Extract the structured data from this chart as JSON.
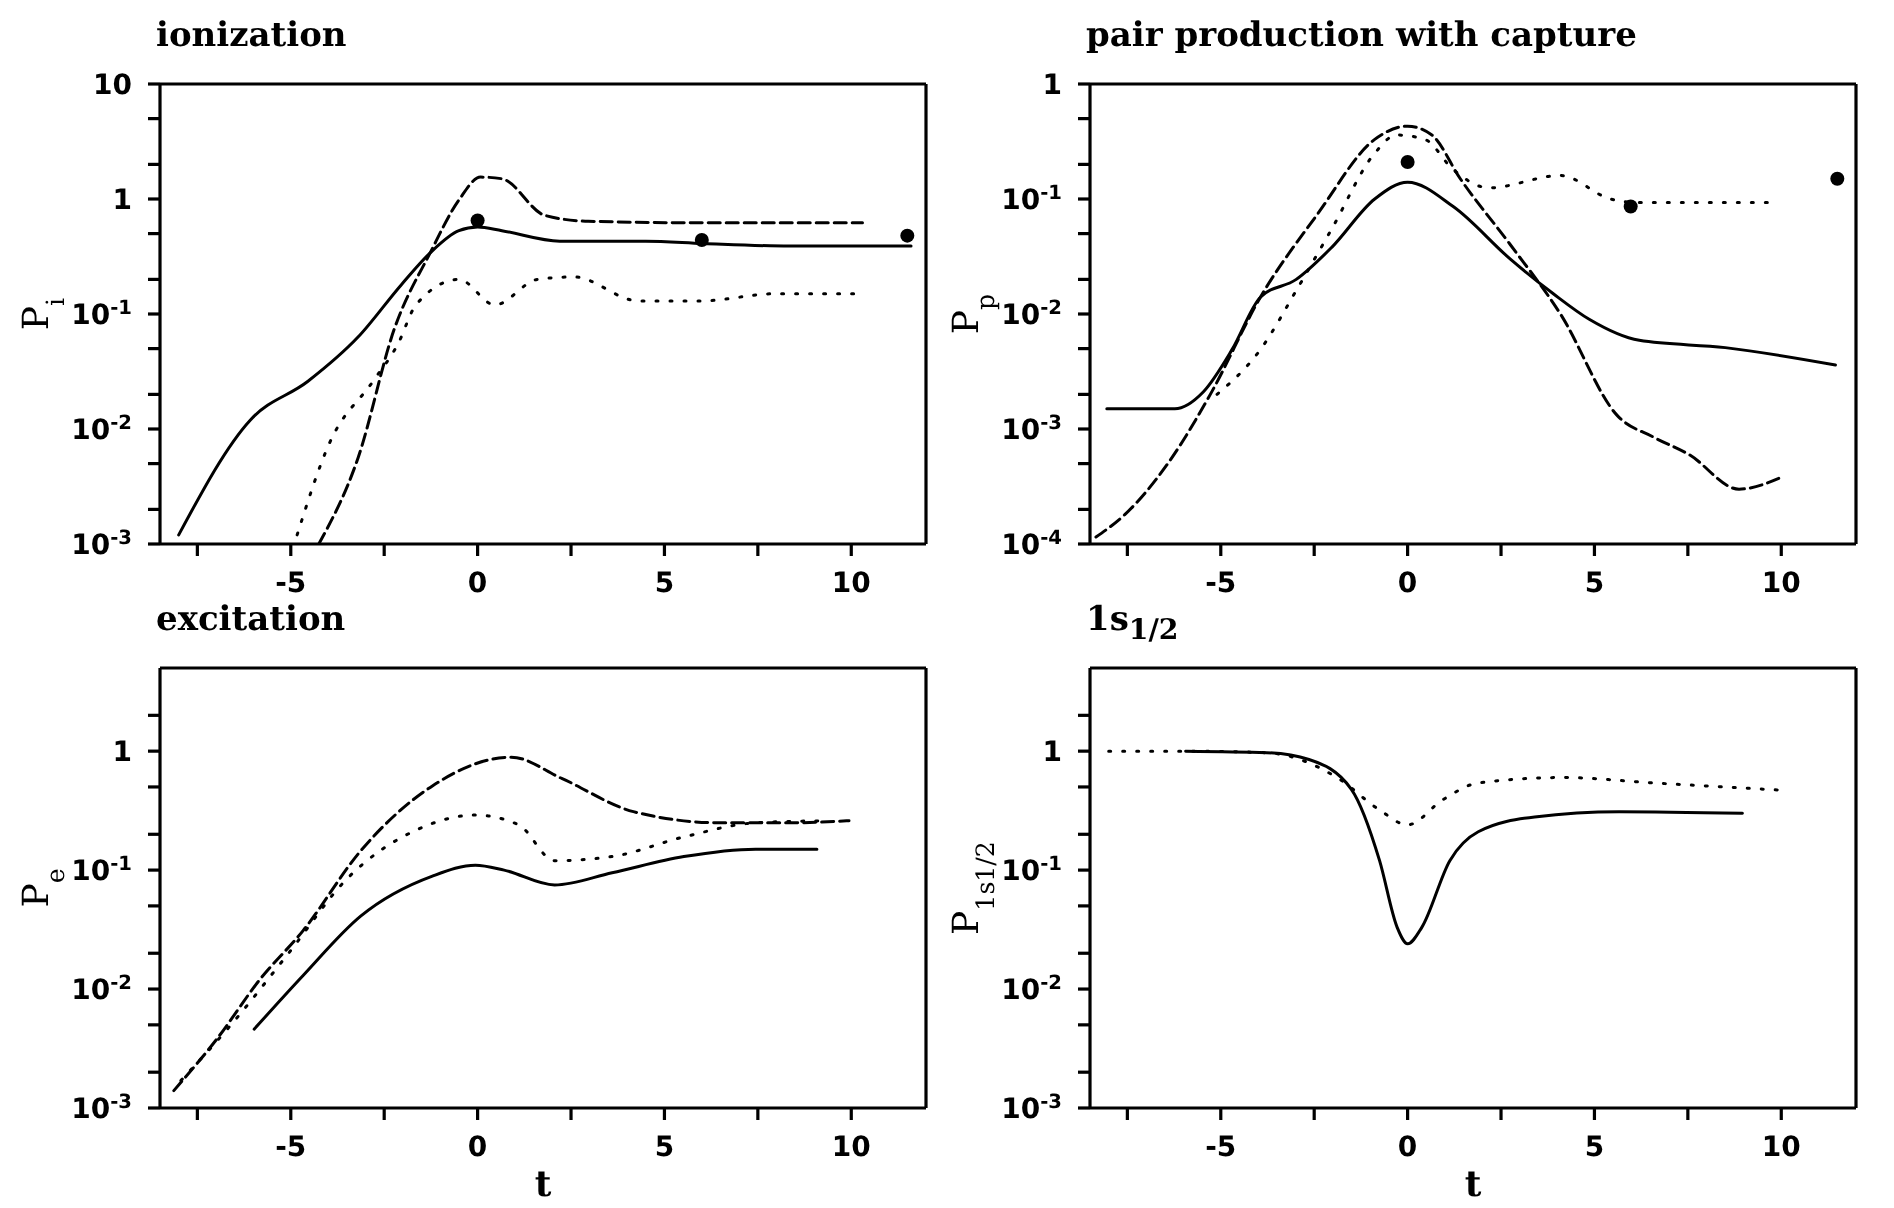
{
  "chart_data": [
    {
      "type": "line",
      "title": "ionization",
      "ylabel": "P$_{i}$",
      "log": true,
      "xlim": [
        -8.5,
        12
      ],
      "xticks": [
        {
          "value": -7.5,
          "label": null
        },
        -5,
        {
          "value": -2.5,
          "label": null
        },
        0,
        {
          "value": 2.5,
          "label": null
        },
        5,
        {
          "value": 7.5,
          "label": null
        },
        10
      ],
      "ylim": [
        0.001,
        10
      ],
      "yticks": [
        {
          "value": 0.001,
          "label": "10$^{-3}$"
        },
        {
          "value": 0.002,
          "label": null
        },
        {
          "value": 0.005,
          "label": null
        },
        {
          "value": 0.01,
          "label": "10$^{-2}$"
        },
        {
          "value": 0.02,
          "label": null
        },
        {
          "value": 0.05,
          "label": null
        },
        {
          "value": 0.1,
          "label": "10$^{-1}$"
        },
        {
          "value": 0.2,
          "label": null
        },
        {
          "value": 0.5,
          "label": null
        },
        {
          "value": 1,
          "label": "1"
        },
        {
          "value": 2,
          "label": null
        },
        {
          "value": 5,
          "label": null
        },
        {
          "value": 10,
          "label": "10"
        }
      ],
      "series": [
        {
          "type": "line",
          "color": "#000000",
          "line_style": "solid",
          "x": [
            -8.0,
            -6.08,
            -4.54,
            -3.2,
            -2.04,
            -1.27,
            -0.5,
            0,
            0.65,
            2.2,
            4.5,
            6.04,
            8.35,
            11.6
          ],
          "values": [
            0.0012,
            0.012,
            0.026,
            0.063,
            0.18,
            0.34,
            0.53,
            0.57,
            0.53,
            0.43,
            0.43,
            0.41,
            0.39,
            0.39
          ]
        },
        {
          "type": "line",
          "color": "#000000",
          "line_style": "dashed",
          "x": [
            -4.25,
            -3.2,
            -2.23,
            -1.27,
            -0.5,
            0.08,
            0.65,
            1.8,
            2.96,
            6.4,
            10.3
          ],
          "values": [
            0.001,
            0.0056,
            0.074,
            0.34,
            0.98,
            1.55,
            1.5,
            0.72,
            0.64,
            0.62,
            0.62
          ]
        },
        {
          "type": "line",
          "color": "#000000",
          "line_style": "dotted",
          "x": [
            -4.83,
            -3.96,
            -2.8,
            -2.13,
            -1.65,
            -0.5,
            0.46,
            1.6,
            2.58,
            4.3,
            6.0,
            7.96,
            10.1
          ],
          "values": [
            0.0012,
            0.0076,
            0.026,
            0.055,
            0.12,
            0.2,
            0.12,
            0.2,
            0.21,
            0.13,
            0.13,
            0.15,
            0.15
          ]
        },
        {
          "type": "scatter",
          "color": "#000000",
          "marker": "circle",
          "x": [
            0,
            6,
            11.5
          ],
          "values": [
            0.65,
            0.44,
            0.48
          ]
        }
      ]
    },
    {
      "type": "line",
      "title": "pair production with capture",
      "ylabel": "P$_{p}$",
      "log": true,
      "xlim": [
        -8.5,
        12
      ],
      "xticks": [
        {
          "value": -7.5,
          "label": null
        },
        -5,
        {
          "value": -2.5,
          "label": null
        },
        0,
        {
          "value": 2.5,
          "label": null
        },
        5,
        {
          "value": 7.5,
          "label": null
        },
        10
      ],
      "ylim": [
        0.0001,
        1
      ],
      "yticks": [
        {
          "value": 0.0001,
          "label": "10$^{-4}$"
        },
        {
          "value": 0.0002,
          "label": null
        },
        {
          "value": 0.0005,
          "label": null
        },
        {
          "value": 0.001,
          "label": "10$^{-3}$"
        },
        {
          "value": 0.002,
          "label": null
        },
        {
          "value": 0.005,
          "label": null
        },
        {
          "value": 0.01,
          "label": "10$^{-2}$"
        },
        {
          "value": 0.02,
          "label": null
        },
        {
          "value": 0.05,
          "label": null
        },
        {
          "value": 0.1,
          "label": "10$^{-1}$"
        },
        {
          "value": 0.2,
          "label": null
        },
        {
          "value": 0.5,
          "label": null
        },
        {
          "value": 1,
          "label": "1"
        }
      ],
      "series": [
        {
          "type": "line",
          "color": "#000000",
          "line_style": "solid",
          "x": [
            -8.05,
            -6.23,
            -5.47,
            -4.7,
            -3.94,
            -2.98,
            -2.03,
            -0.88,
            0,
            1.22,
            2.75,
            3.9,
            4.86,
            6.2,
            8.5,
            11.45
          ],
          "values": [
            0.0015,
            0.0015,
            0.0021,
            0.0049,
            0.014,
            0.02,
            0.038,
            0.1,
            0.14,
            0.086,
            0.03,
            0.015,
            0.009,
            0.0059,
            0.0051,
            0.0036
          ]
        },
        {
          "type": "line",
          "color": "#000000",
          "line_style": "dashed",
          "x": [
            -8.34,
            -7.57,
            -6.4,
            -5.28,
            -3.94,
            -2.41,
            -0.88,
            0,
            0.65,
            1.41,
            2.75,
            4.09,
            5.62,
            6.58,
            7.53,
            8.87,
            10.0
          ],
          "values": [
            0.000115,
            0.00018,
            0.00051,
            0.002,
            0.014,
            0.074,
            0.33,
            0.43,
            0.36,
            0.15,
            0.04,
            0.01,
            0.0013,
            0.00085,
            0.0006,
            0.0003,
            0.00038
          ]
        },
        {
          "type": "line",
          "color": "#000000",
          "line_style": "dotted",
          "x": [
            -5.1,
            -3.94,
            -2.98,
            -2.03,
            -0.88,
            -0.3,
            0.46,
            1.22,
            2.18,
            4.09,
            5.43,
            6.2,
            7.53,
            9.8
          ],
          "values": [
            0.002,
            0.0049,
            0.016,
            0.055,
            0.25,
            0.36,
            0.33,
            0.18,
            0.125,
            0.16,
            0.1,
            0.093,
            0.093,
            0.093
          ]
        },
        {
          "type": "scatter",
          "color": "#000000",
          "marker": "circle",
          "x": [
            0,
            5.97,
            11.5
          ],
          "values": [
            0.21,
            0.086,
            0.15
          ]
        }
      ]
    },
    {
      "type": "line",
      "title": "excitation",
      "xlabel": "t",
      "ylabel": "P$_{e}$",
      "log": true,
      "xlim": [
        -8.5,
        12
      ],
      "xticks": [
        {
          "value": -7.5,
          "label": null
        },
        -5,
        {
          "value": -2.5,
          "label": null
        },
        0,
        {
          "value": 2.5,
          "label": null
        },
        5,
        {
          "value": 7.5,
          "label": null
        },
        10
      ],
      "ylim": [
        0.001,
        5
      ],
      "yticks": [
        {
          "value": 0.001,
          "label": "10$^{-3}$"
        },
        {
          "value": 0.002,
          "label": null
        },
        {
          "value": 0.005,
          "label": null
        },
        {
          "value": 0.01,
          "label": "10$^{-2}$"
        },
        {
          "value": 0.02,
          "label": null
        },
        {
          "value": 0.05,
          "label": null
        },
        {
          "value": 0.1,
          "label": "10$^{-1}$"
        },
        {
          "value": 0.2,
          "label": null
        },
        {
          "value": 0.5,
          "label": null
        },
        {
          "value": 1,
          "label": "1"
        },
        {
          "value": 2,
          "label": null
        }
      ],
      "series": [
        {
          "type": "line",
          "color": "#000000",
          "line_style": "solid",
          "x": [
            -5.98,
            -4.67,
            -3.13,
            -1.21,
            -0.06,
            0.71,
            2.06,
            3.6,
            5.52,
            7.44,
            9.08
          ],
          "values": [
            0.0046,
            0.013,
            0.041,
            0.089,
            0.11,
            0.1,
            0.075,
            0.095,
            0.13,
            0.15,
            0.15
          ]
        },
        {
          "type": "line",
          "color": "#000000",
          "line_style": "dashed",
          "x": [
            -8.13,
            -6.98,
            -5.83,
            -4.67,
            -3.13,
            -1.21,
            0.9,
            2.25,
            4.17,
            6.48,
            8.4,
            9.94
          ],
          "values": [
            0.0014,
            0.0038,
            0.012,
            0.031,
            0.145,
            0.51,
            0.89,
            0.59,
            0.31,
            0.25,
            0.25,
            0.26
          ]
        },
        {
          "type": "line",
          "color": "#000000",
          "line_style": "dotted",
          "x": [
            -7.94,
            -6.6,
            -5.06,
            -3.52,
            -1.6,
            -0.06,
            1.1,
            2.06,
            3.6,
            5.52,
            7.44,
            9.37
          ],
          "values": [
            0.0017,
            0.005,
            0.02,
            0.083,
            0.22,
            0.29,
            0.24,
            0.12,
            0.13,
            0.19,
            0.25,
            0.26
          ]
        }
      ]
    },
    {
      "type": "line",
      "title": "1s$_{1/2}$",
      "xlabel": "t",
      "ylabel": "P$_{1s}$$_{1/2}$",
      "log": true,
      "xlim": [
        -8.5,
        12
      ],
      "xticks": [
        {
          "value": -7.5,
          "label": null
        },
        -5,
        {
          "value": -2.5,
          "label": null
        },
        0,
        {
          "value": 2.5,
          "label": null
        },
        5,
        {
          "value": 7.5,
          "label": null
        },
        10
      ],
      "ylim": [
        0.001,
        5
      ],
      "yticks": [
        {
          "value": 0.001,
          "label": "10$^{-3}$"
        },
        {
          "value": 0.002,
          "label": null
        },
        {
          "value": 0.005,
          "label": null
        },
        {
          "value": 0.01,
          "label": "10$^{-2}$"
        },
        {
          "value": 0.02,
          "label": null
        },
        {
          "value": 0.05,
          "label": null
        },
        {
          "value": 0.1,
          "label": "10$^{-1}$"
        },
        {
          "value": 0.2,
          "label": null
        },
        {
          "value": 0.5,
          "label": null
        },
        {
          "value": 1,
          "label": "1"
        },
        {
          "value": 2,
          "label": null
        }
      ],
      "series": [
        {
          "type": "line",
          "color": "#000000",
          "line_style": "solid",
          "x": [
            -5.94,
            -3.77,
            -2.64,
            -1.51,
            -0.75,
            -0.28,
            0,
            0.38,
            1.13,
            1.89,
            3.4,
            5.66,
            8.96
          ],
          "values": [
            1.0,
            0.97,
            0.85,
            0.48,
            0.12,
            0.033,
            0.024,
            0.033,
            0.12,
            0.21,
            0.28,
            0.31,
            0.3
          ]
        },
        {
          "type": "line",
          "color": "#000000",
          "line_style": "dotted",
          "x": [
            -8.0,
            -6.0,
            -3.77,
            -1.89,
            -0.75,
            0,
            0.94,
            1.89,
            4.15,
            6.6,
            10.0
          ],
          "values": [
            1.0,
            1.0,
            0.97,
            0.6,
            0.32,
            0.24,
            0.39,
            0.54,
            0.6,
            0.54,
            0.47
          ]
        }
      ]
    }
  ]
}
